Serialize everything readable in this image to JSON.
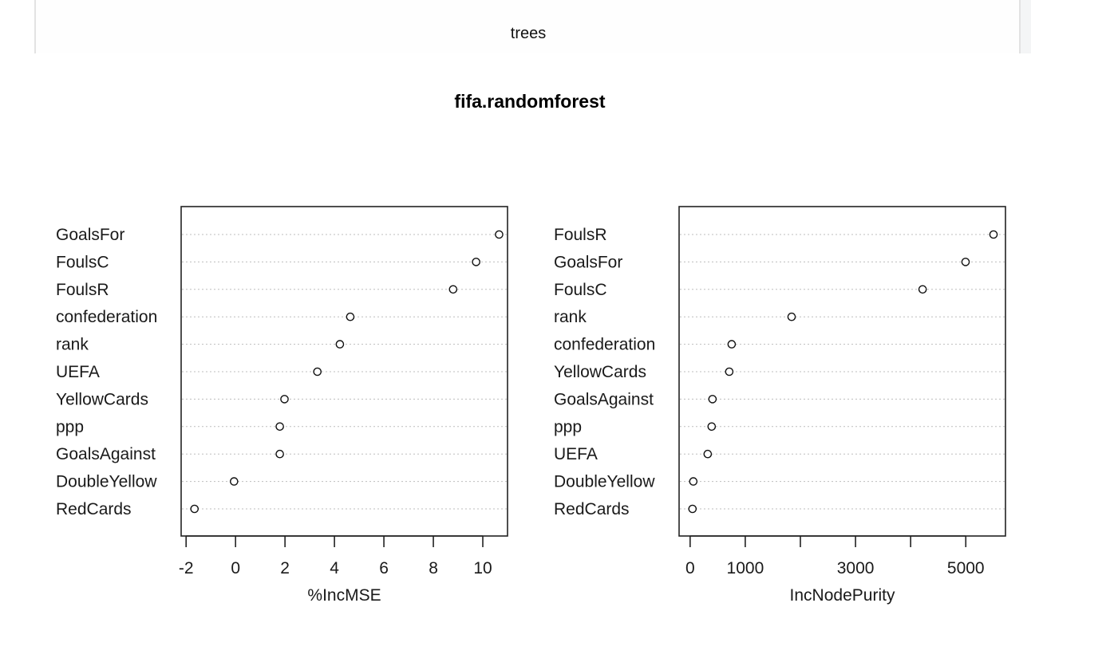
{
  "top_panel": {
    "label": "trees"
  },
  "chart_data": [
    {
      "type": "scatter",
      "subtype": "dotchart",
      "title": "fifa.randomforest",
      "xlabel": "%IncMSE",
      "ylabel": "",
      "xlim": [
        -2.2,
        11.0
      ],
      "xticks": [
        -2,
        0,
        2,
        4,
        6,
        8,
        10
      ],
      "xtick_labels": [
        "-2",
        "0",
        "2",
        "4",
        "6",
        "8",
        "10"
      ],
      "grid": "dotted horizontal per row",
      "categories": [
        "GoalsFor",
        "FoulsC",
        "FoulsR",
        "confederation",
        "rank",
        "UEFA",
        "YellowCards",
        "ppp",
        "GoalsAgainst",
        "DoubleYellow",
        "RedCards"
      ],
      "values": [
        10.66,
        9.73,
        8.8,
        4.64,
        4.22,
        3.31,
        1.98,
        1.79,
        1.79,
        -0.06,
        -1.66
      ]
    },
    {
      "type": "scatter",
      "subtype": "dotchart",
      "title": "fifa.randomforest",
      "xlabel": "IncNodePurity",
      "ylabel": "",
      "xlim": [
        -200,
        5720
      ],
      "xticks": [
        0,
        1000,
        2000,
        3000,
        4000,
        5000
      ],
      "xtick_labels": [
        "0",
        "1000",
        "",
        "3000",
        "",
        "5000"
      ],
      "grid": "dotted horizontal per row",
      "categories": [
        "FoulsR",
        "GoalsFor",
        "FoulsC",
        "rank",
        "confederation",
        "YellowCards",
        "GoalsAgainst",
        "ppp",
        "UEFA",
        "DoubleYellow",
        "RedCards"
      ],
      "values": [
        5503,
        4996,
        4217,
        1841,
        754,
        710,
        406,
        391,
        319,
        58,
        43
      ]
    }
  ]
}
